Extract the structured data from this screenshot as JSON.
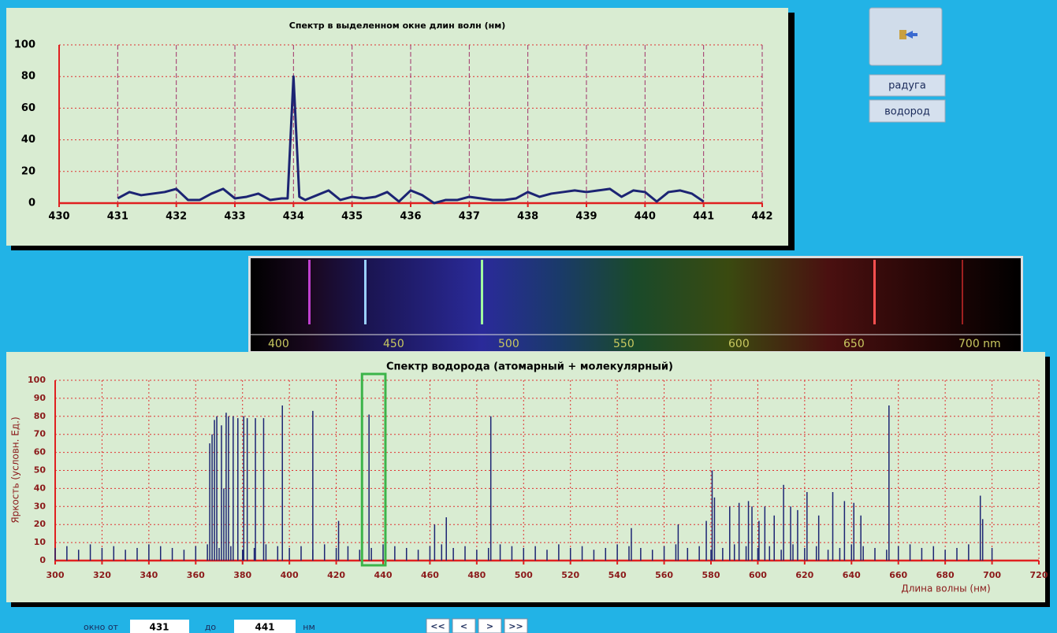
{
  "chart_data": [
    {
      "type": "line",
      "title": "Спектр в выделенном окне длин волн (нм)",
      "color": "#1c2473",
      "x": [
        431,
        431.2,
        431.4,
        431.6,
        431.8,
        432,
        432.2,
        432.4,
        432.6,
        432.8,
        433,
        433.2,
        433.4,
        433.6,
        433.8,
        433.9,
        434,
        434.1,
        434.2,
        434.4,
        434.6,
        434.8,
        435,
        435.2,
        435.4,
        435.6,
        435.8,
        436,
        436.2,
        436.4,
        436.6,
        436.8,
        437,
        437.2,
        437.4,
        437.6,
        437.8,
        438,
        438.2,
        438.4,
        438.6,
        438.8,
        439,
        439.2,
        439.4,
        439.6,
        439.8,
        440,
        440.2,
        440.4,
        440.6,
        440.8,
        441
      ],
      "values": [
        3,
        7,
        5,
        6,
        7,
        9,
        2,
        2,
        6,
        9,
        3,
        4,
        6,
        2,
        3,
        3,
        80,
        4,
        2,
        5,
        8,
        2,
        4,
        3,
        4,
        7,
        1,
        8,
        5,
        0,
        2,
        2,
        4,
        3,
        2,
        2,
        3,
        7,
        4,
        6,
        7,
        8,
        7,
        8,
        9,
        4,
        8,
        7,
        1,
        7,
        8,
        6,
        1
      ],
      "xlim": [
        430,
        442
      ],
      "xticks": [
        430,
        431,
        432,
        433,
        434,
        435,
        436,
        437,
        438,
        439,
        440,
        441,
        442
      ],
      "ylim": [
        0,
        100
      ],
      "yticks": [
        0,
        20,
        40,
        60,
        80,
        100
      ],
      "grid": true
    },
    {
      "type": "bar",
      "title": "Спектр водорода (атомарный + молекулярный)",
      "xlabel": "Длина волны (нм)",
      "ylabel": "Яркость (условн. Ед.)",
      "color": "#1c2473",
      "x": [
        300,
        305,
        310,
        315,
        320,
        325,
        330,
        335,
        340,
        345,
        350,
        355,
        360,
        365,
        370,
        375,
        380,
        385,
        390,
        395,
        400,
        405,
        410,
        415,
        420,
        425,
        430,
        435,
        440,
        445,
        450,
        455,
        460,
        465,
        470,
        475,
        480,
        485,
        490,
        495,
        500,
        505,
        510,
        515,
        520,
        525,
        530,
        535,
        540,
        545,
        550,
        555,
        560,
        565,
        570,
        575,
        580,
        585,
        590,
        595,
        600,
        605,
        610,
        615,
        620,
        625,
        630,
        635,
        640,
        645,
        650,
        655,
        660,
        665,
        670,
        675,
        680,
        685,
        690,
        695,
        700,
        366,
        367,
        368,
        369,
        371,
        372,
        373,
        374,
        376,
        378,
        380.5,
        382,
        385.5,
        389,
        397,
        410,
        421,
        434,
        462,
        467,
        486,
        546,
        566,
        578,
        580.5,
        581.5,
        588,
        592,
        596,
        597.5,
        600.5,
        603,
        607,
        611,
        614,
        617,
        621,
        626,
        632,
        637,
        641,
        644,
        656,
        695,
        696
      ],
      "values": [
        7,
        8,
        6,
        9,
        7,
        8,
        6,
        7,
        9,
        8,
        7,
        6,
        8,
        9,
        7,
        8,
        6,
        7,
        9,
        8,
        7,
        8,
        6,
        9,
        7,
        8,
        6,
        7,
        9,
        8,
        7,
        6,
        8,
        9,
        7,
        8,
        6,
        7,
        9,
        8,
        7,
        8,
        6,
        9,
        7,
        8,
        6,
        7,
        9,
        8,
        7,
        6,
        8,
        9,
        7,
        8,
        6,
        7,
        9,
        8,
        7,
        8,
        6,
        9,
        7,
        8,
        6,
        7,
        9,
        8,
        7,
        6,
        8,
        9,
        7,
        8,
        6,
        7,
        9,
        8,
        7,
        65,
        70,
        78,
        80,
        75,
        40,
        82,
        80,
        80,
        79,
        80,
        79,
        79,
        79,
        86,
        83,
        22,
        81,
        20,
        24,
        80,
        18,
        20,
        22,
        50,
        35,
        30,
        32,
        33,
        30,
        22,
        30,
        25,
        42,
        30,
        28,
        38,
        25,
        38,
        33,
        32,
        25,
        86,
        36,
        23
      ],
      "xlim": [
        300,
        720
      ],
      "xticks": [
        300,
        320,
        340,
        360,
        380,
        400,
        420,
        440,
        460,
        480,
        500,
        520,
        540,
        560,
        580,
        600,
        620,
        640,
        660,
        680,
        700,
        720
      ],
      "ylim": [
        0,
        100
      ],
      "yticks": [
        0,
        10,
        20,
        30,
        40,
        50,
        60,
        70,
        80,
        90,
        100
      ],
      "grid": true
    }
  ],
  "spectrum_image": {
    "scale_labels": [
      "400",
      "450",
      "500",
      "550",
      "600",
      "650",
      "700 nm"
    ]
  },
  "buttons": {
    "rainbow": "радуга",
    "hydrogen": "водород"
  },
  "controls": {
    "window_label": "окно от",
    "from": 431,
    "to_label": "до",
    "to": 441,
    "unit": "нм",
    "nav": [
      "<<",
      "<",
      ">",
      ">>"
    ]
  }
}
